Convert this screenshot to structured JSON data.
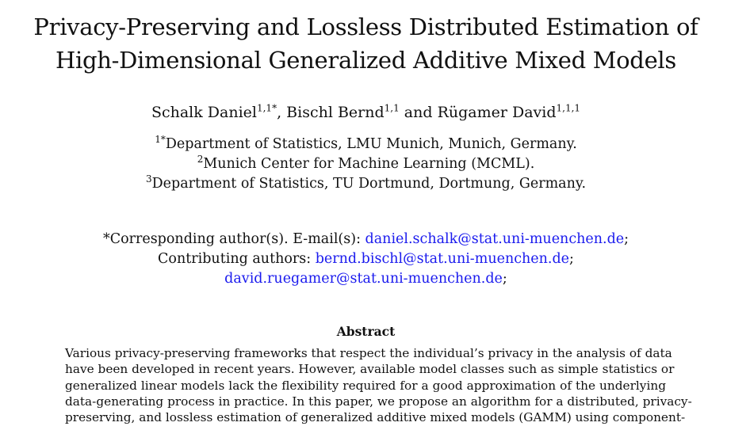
{
  "title": {
    "line1": "Privacy-Preserving and Lossless Distributed Estimation of",
    "line2": "High-Dimensional Generalized Additive Mixed Models"
  },
  "authors": [
    {
      "name": "Schalk Daniel",
      "sup": "1,1*",
      "sep": ", "
    },
    {
      "name": "Bischl Bernd",
      "sup": "1,1",
      "sep": " and "
    },
    {
      "name": "Rügamer David",
      "sup": "1,1,1",
      "sep": ""
    }
  ],
  "affiliations": [
    {
      "sup": "1*",
      "text": "Department of Statistics, LMU Munich, Munich, Germany."
    },
    {
      "sup": "2",
      "text": "Munich Center for Machine Learning (MCML)."
    },
    {
      "sup": "3",
      "text": "Department of Statistics, TU Dortmund, Dortmung, Germany."
    }
  ],
  "correspondence": {
    "corr_prefix": "*Corresponding author(s). E-mail(s): ",
    "corr_email": "daniel.schalk@stat.uni-muenchen.de",
    "corr_suffix": ";",
    "contrib_prefix": "Contributing authors: ",
    "contrib_email1": "bernd.bischl@stat.uni-muenchen.de",
    "contrib_suffix1": ";",
    "contrib_email2": "david.ruegamer@stat.uni-muenchen.de",
    "contrib_suffix2": ";"
  },
  "abstract": {
    "heading": "Abstract",
    "lines": [
      "Various privacy-preserving frameworks that respect the individual’s privacy in the analysis of data",
      "have been developed in recent years. However, available model classes such as simple statistics or",
      "generalized linear models lack the flexibility required for a good approximation of the underlying",
      "data-generating process in practice. In this paper, we propose an algorithm for a distributed, privacy-",
      "preserving, and lossless estimation of generalized additive mixed models (GAMM) using component-"
    ]
  }
}
